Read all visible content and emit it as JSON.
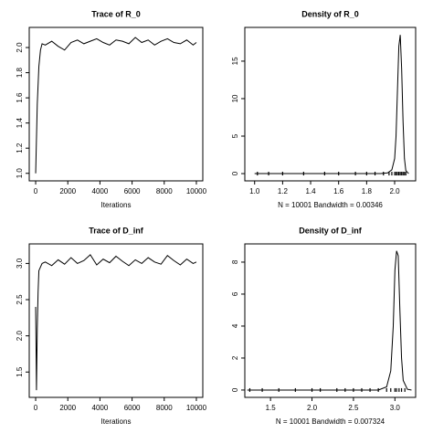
{
  "chart_data": [
    {
      "type": "line",
      "title": "Trace of R_0",
      "xlabel": "Iterations",
      "x": [
        0,
        100,
        200,
        300,
        400,
        600,
        1000,
        1400,
        1800,
        2200,
        2600,
        3000,
        3400,
        3800,
        4200,
        4600,
        5000,
        5400,
        5800,
        6200,
        6600,
        7000,
        7400,
        7800,
        8200,
        8600,
        9000,
        9400,
        9800,
        10000
      ],
      "values": [
        1.0,
        1.55,
        1.85,
        1.98,
        2.03,
        2.02,
        2.05,
        2.01,
        1.98,
        2.04,
        2.06,
        2.03,
        2.05,
        2.07,
        2.04,
        2.02,
        2.06,
        2.05,
        2.03,
        2.08,
        2.04,
        2.06,
        2.02,
        2.05,
        2.07,
        2.04,
        2.03,
        2.06,
        2.02,
        2.04
      ],
      "color": "#000000",
      "xlim": [
        -400,
        10400
      ],
      "ylim": [
        0.94,
        2.16
      ],
      "xticks": [
        0,
        2000,
        4000,
        6000,
        8000,
        10000
      ],
      "yticks": [
        {
          "value": 1.0,
          "label": "1.0"
        },
        1.2,
        1.4,
        1.6,
        1.8,
        {
          "value": 2.0,
          "label": "2.0"
        }
      ]
    },
    {
      "type": "line",
      "title": "Density of R_0",
      "xlabel": "N = 10001   Bandwidth = 0.00346",
      "x": [
        1.0,
        1.9,
        1.95,
        1.98,
        2.0,
        2.01,
        2.02,
        2.03,
        2.04,
        2.05,
        2.06,
        2.07,
        2.08,
        2.1
      ],
      "values": [
        0,
        0,
        0.1,
        0.5,
        2,
        5,
        11,
        17,
        18.5,
        14,
        7,
        2,
        0.4,
        0
      ],
      "rug": [
        1.02,
        1.1,
        1.2,
        1.35,
        1.5,
        1.6,
        1.72,
        1.8,
        1.86,
        1.92,
        1.96,
        1.98,
        2.0,
        2.01,
        2.02,
        2.03,
        2.04,
        2.05,
        2.06,
        2.07,
        2.08
      ],
      "color": "#000000",
      "xlim": [
        0.93,
        2.15
      ],
      "ylim": [
        -0.97,
        19.5
      ],
      "xticks": [
        {
          "value": 1.0,
          "label": "1.0"
        },
        1.2,
        1.4,
        1.6,
        1.8,
        {
          "value": 2.0,
          "label": "2.0"
        }
      ],
      "yticks": [
        0,
        5,
        10,
        15
      ]
    },
    {
      "type": "line",
      "title": "Trace of D_inf",
      "xlabel": "Iterations",
      "x": [
        0,
        50,
        100,
        150,
        200,
        300,
        400,
        600,
        1000,
        1400,
        1800,
        2200,
        2600,
        3000,
        3400,
        3800,
        4200,
        4600,
        5000,
        5400,
        5800,
        6200,
        6600,
        7000,
        7400,
        7800,
        8200,
        8600,
        9000,
        9400,
        9800,
        10000
      ],
      "values": [
        2.4,
        1.25,
        2.1,
        2.6,
        2.9,
        2.95,
        3.0,
        3.02,
        2.97,
        3.05,
        2.99,
        3.08,
        3.0,
        3.04,
        3.12,
        2.98,
        3.06,
        3.01,
        3.1,
        3.03,
        2.97,
        3.05,
        3.0,
        3.08,
        3.02,
        2.99,
        3.11,
        3.04,
        2.98,
        3.06,
        3.0,
        3.02
      ],
      "color": "#000000",
      "xlim": [
        -400,
        10400
      ],
      "ylim": [
        1.15,
        3.27
      ],
      "xticks": [
        0,
        2000,
        4000,
        6000,
        8000,
        10000
      ],
      "yticks": [
        1.5,
        {
          "value": 2.0,
          "label": "2.0"
        },
        2.5,
        {
          "value": 3.0,
          "label": "3.0"
        }
      ]
    },
    {
      "type": "line",
      "title": "Density of D_inf",
      "xlabel": "N = 10001   Bandwidth = 0.007324",
      "x": [
        1.22,
        2.8,
        2.9,
        2.95,
        2.98,
        3.0,
        3.02,
        3.04,
        3.06,
        3.08,
        3.1,
        3.15,
        3.2
      ],
      "values": [
        0,
        0,
        0.2,
        1.2,
        4,
        7.5,
        8.7,
        8.4,
        5,
        2,
        0.6,
        0.05,
        0
      ],
      "rug": [
        1.25,
        1.4,
        1.6,
        1.8,
        2.0,
        2.1,
        2.3,
        2.4,
        2.5,
        2.6,
        2.7,
        2.8,
        2.9,
        2.95,
        3.0,
        3.02,
        3.05,
        3.08,
        3.12
      ],
      "color": "#000000",
      "xlim": [
        1.19,
        3.25
      ],
      "ylim": [
        -0.46,
        9.14
      ],
      "xticks": [
        1.5,
        {
          "value": 2.0,
          "label": "2.0"
        },
        2.5,
        {
          "value": 3.0,
          "label": "3.0"
        }
      ],
      "yticks": [
        0,
        2,
        4,
        6,
        8
      ]
    }
  ]
}
